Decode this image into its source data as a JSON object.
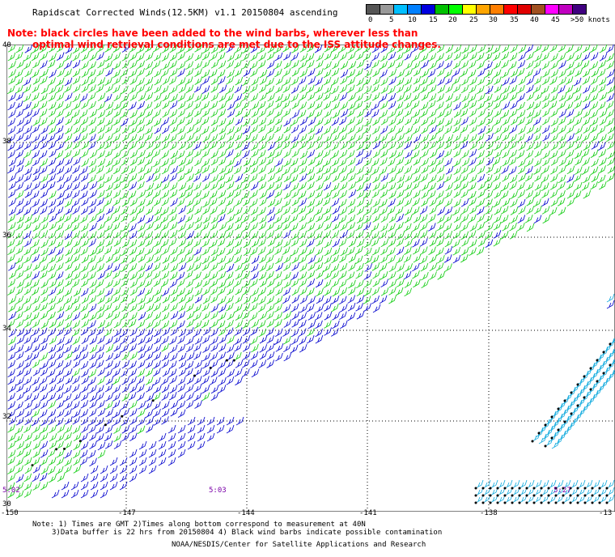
{
  "header": {
    "title": "Rapidscat Corrected Winds(12.5KM) v1.1 20150804 ascending",
    "note_line1": "Note: black circles have been added to the wind barbs, wherever less than",
    "note_line2": "optimal wind retrieval conditions are met due to the ISS attitude changes."
  },
  "legend": {
    "unit": ">50 knots",
    "labels": [
      "0",
      "5",
      "10",
      "15",
      "20",
      "25",
      "30",
      "35",
      "40",
      "45",
      ">50 knots"
    ],
    "colors": [
      "#555555",
      "#999999",
      "#00bfff",
      "#0080ff",
      "#0000e0",
      "#00c000",
      "#00ff00",
      "#ffff00",
      "#ffa500",
      "#ff7f00",
      "#ff0000",
      "#e00000",
      "#a05020",
      "#ff00ff",
      "#c000c0",
      "#400080"
    ]
  },
  "axes": {
    "lat_labels": [
      "40",
      "38",
      "36",
      "34",
      "32",
      "30"
    ],
    "lon_labels": [
      "-150",
      "-147",
      "-144",
      "-141",
      "-138",
      "-13"
    ]
  },
  "times": [
    "5:02",
    "5:03",
    "5:27"
  ],
  "footer": {
    "line1": "Note: 1) Times are GMT 2)Times along bottom correspond to measurement at 40N",
    "line2": "3)Data buffer is 22 hrs from 20150804 4) Black wind barbs indicate possible contamination",
    "line3": "NOAA/NESDIS/Center for Satellite Applications and Research"
  },
  "colors": {
    "blue_barb": "#1010d0",
    "green_barb": "#20d020",
    "cyan_barb": "#20b0e0",
    "note_red": "#ff0000",
    "time_purple": "#7a00a8"
  }
}
